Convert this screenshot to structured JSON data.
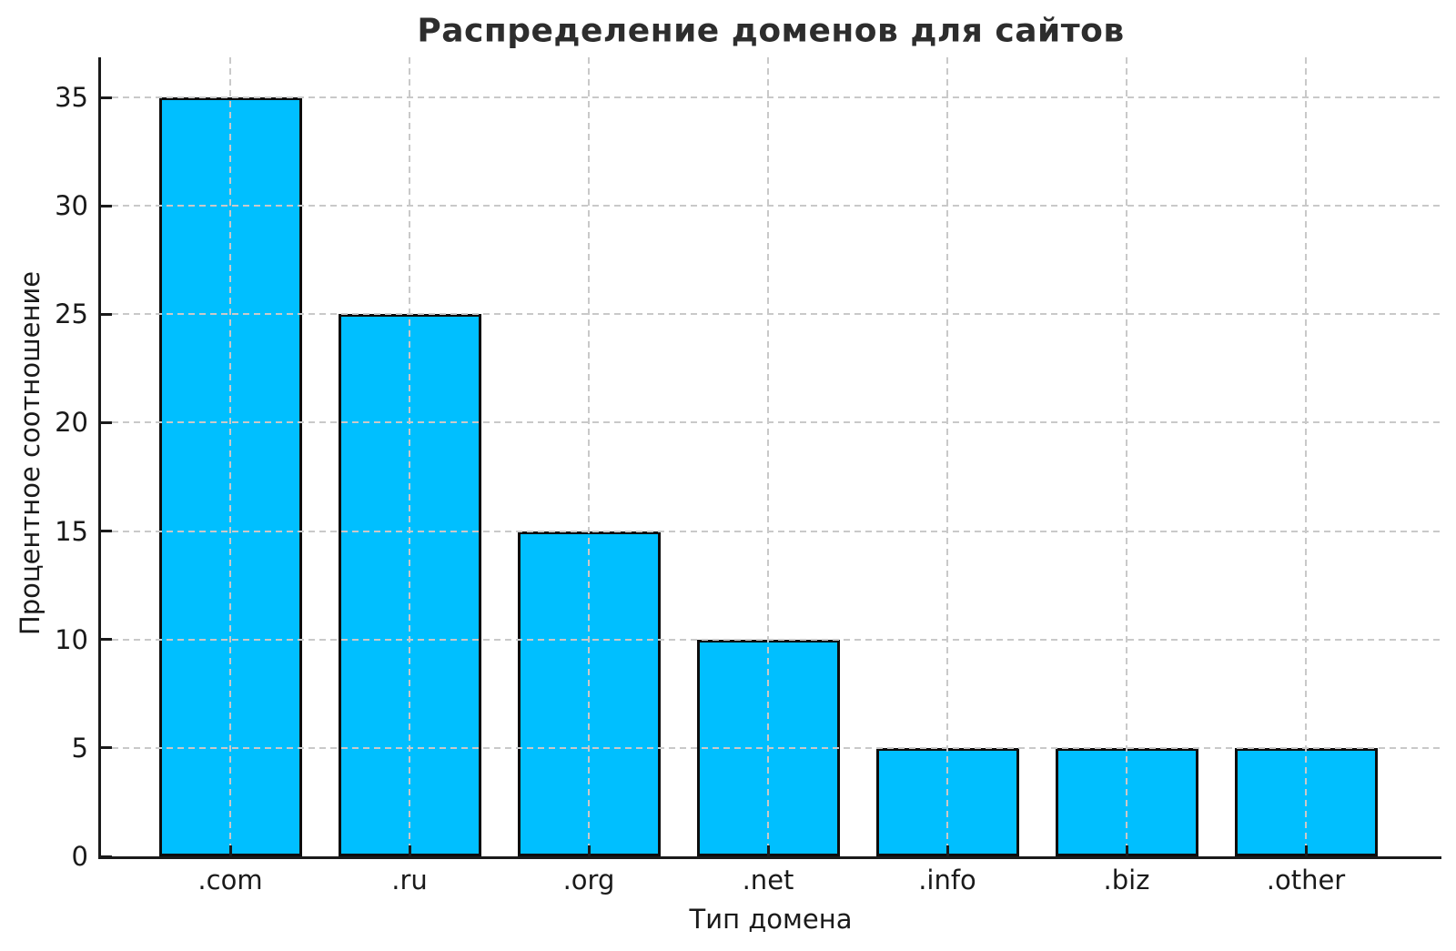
{
  "chart_data": {
    "type": "bar",
    "title": "Распределение доменов для сайтов",
    "xlabel": "Тип домена",
    "ylabel": "Процентное соотношение",
    "categories": [
      ".com",
      ".ru",
      ".org",
      ".net",
      ".info",
      ".biz",
      ".other"
    ],
    "values": [
      35,
      25,
      15,
      10,
      5,
      5,
      5
    ],
    "yticks": [
      0,
      5,
      10,
      15,
      20,
      25,
      30,
      35
    ],
    "ylim": [
      0,
      36.85
    ],
    "grid": {
      "visible": true,
      "style": "dashed",
      "axes": "both",
      "on_top_of_bars": true
    },
    "legend": "none shown",
    "colors": {
      "bar_fill": "#00bfff",
      "bar_edge": "#0d0d0d",
      "grid": "#c9c9c9",
      "axis": "#1a1a1a",
      "title": "#2d2d2d",
      "background": "#ffffff"
    }
  }
}
